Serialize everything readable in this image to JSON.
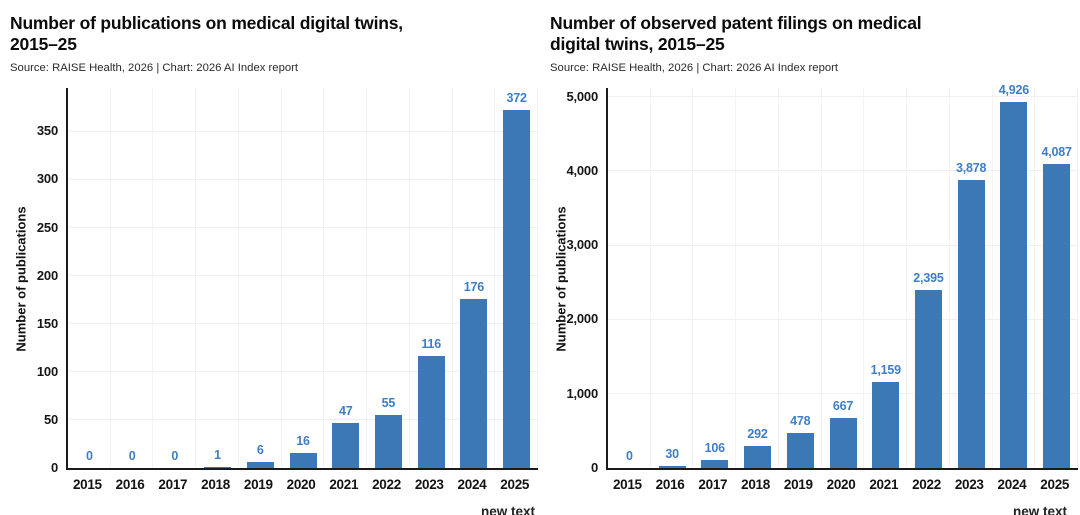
{
  "colors": {
    "bar": "#3c78b5",
    "value_label": "#3d7ec6",
    "axis": "#1b1b1b",
    "gridline": "#edeff1",
    "title_text": "#0b0b0b",
    "source_text": "#2a2a2a",
    "background": "#ffffff"
  },
  "chart_data": [
    {
      "type": "bar",
      "title": "Number of publications on medical digital twins, 2015–25",
      "title_lines": [
        "Number of publications on medical digital twins,",
        "2015–25"
      ],
      "source": "Source: RAISE Health, 2026 | Chart: 2026 AI Index report",
      "ylabel": "Number of publications",
      "xlabel": "",
      "categories": [
        "2015",
        "2016",
        "2017",
        "2018",
        "2019",
        "2020",
        "2021",
        "2022",
        "2023",
        "2024",
        "2025"
      ],
      "values": [
        0,
        0,
        0,
        1,
        6,
        16,
        47,
        55,
        116,
        176,
        372
      ],
      "value_labels": [
        "0",
        "0",
        "0",
        "1",
        "6",
        "16",
        "47",
        "55",
        "116",
        "176",
        "372"
      ],
      "yticks": [
        0,
        50,
        100,
        150,
        200,
        250,
        300,
        350
      ],
      "ytick_labels": [
        "0",
        "50",
        "100",
        "150",
        "200",
        "250",
        "300",
        "350"
      ],
      "ylim": [
        0,
        395
      ],
      "grid": true,
      "legend": "none",
      "bar_color": "#3c78b5",
      "value_label_color": "#3d7ec6",
      "clipped_annotation": "new text"
    },
    {
      "type": "bar",
      "title": "Number of observed patent filings on medical digital twins, 2015–25",
      "title_lines": [
        "Number of observed patent filings on medical",
        "digital twins, 2015–25"
      ],
      "source": "Source: RAISE Health, 2026 | Chart: 2026 AI Index report",
      "ylabel": "Number of publications",
      "xlabel": "",
      "categories": [
        "2015",
        "2016",
        "2017",
        "2018",
        "2019",
        "2020",
        "2021",
        "2022",
        "2023",
        "2024",
        "2025"
      ],
      "values": [
        0,
        30,
        106,
        292,
        478,
        667,
        1159,
        2395,
        3878,
        4926,
        4087
      ],
      "value_labels": [
        "0",
        "30",
        "106",
        "292",
        "478",
        "667",
        "1,159",
        "2,395",
        "3,878",
        "4,926",
        "4,087"
      ],
      "yticks": [
        0,
        1000,
        2000,
        3000,
        4000,
        5000
      ],
      "ytick_labels": [
        "0",
        "1,000",
        "2,000",
        "3,000",
        "4,000",
        "5,000"
      ],
      "ylim": [
        0,
        5115
      ],
      "grid": true,
      "legend": "none",
      "bar_color": "#3c78b5",
      "value_label_color": "#3d7ec6",
      "clipped_annotation": "new text"
    }
  ]
}
